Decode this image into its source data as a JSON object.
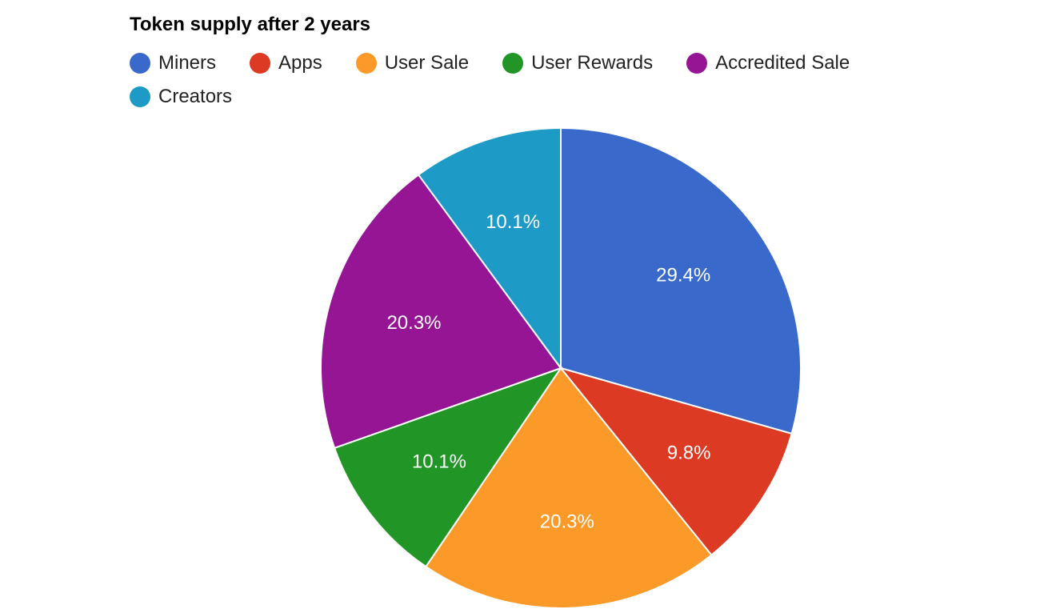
{
  "chart_data": {
    "type": "pie",
    "title": "Token supply after 2 years",
    "legend_placement": "top",
    "slices": [
      {
        "name": "Miners",
        "value": 29.4,
        "label": "29.4%",
        "color": "#3a69cc"
      },
      {
        "name": "Apps",
        "value": 9.8,
        "label": "9.8%",
        "color": "#dc3a22"
      },
      {
        "name": "User Sale",
        "value": 20.3,
        "label": "20.3%",
        "color": "#fb9a28"
      },
      {
        "name": "User Rewards",
        "value": 10.1,
        "label": "10.1%",
        "color": "#219627"
      },
      {
        "name": "Accredited Sale",
        "value": 20.3,
        "label": "20.3%",
        "color": "#951595"
      },
      {
        "name": "Creators",
        "value": 10.1,
        "label": "10.1%",
        "color": "#1d9ac6"
      }
    ]
  }
}
